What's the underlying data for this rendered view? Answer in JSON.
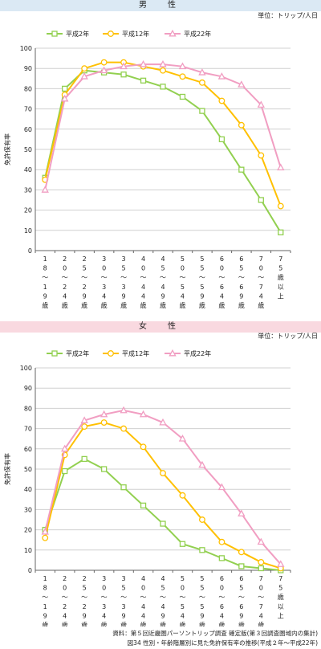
{
  "male": {
    "header": "男　性",
    "unit": "単位：トリップ/人日"
  },
  "female": {
    "header": "女　性",
    "unit": "単位：トリップ/人日"
  },
  "footer": {
    "source": "資料：第５回近畿圏パーソントリップ調査 確定版(第３回調査圏域内の集計)",
    "caption": "図34 性別・年齢階層別に見た免許保有率の推移(平成２年〜平成22年)"
  },
  "chart_data": [
    {
      "type": "line",
      "title": "男　性",
      "ylabel": "免許保有率",
      "xlabel": "",
      "ylim": [
        0,
        100
      ],
      "yticks": [
        0,
        10,
        20,
        30,
        40,
        50,
        60,
        70,
        80,
        90,
        100
      ],
      "grid": true,
      "legend": "top",
      "categories": [
        "18〜19歳",
        "20〜24歳",
        "25〜29歳",
        "30〜34歳",
        "35〜39歳",
        "40〜44歳",
        "45〜49歳",
        "50〜54歳",
        "55〜59歳",
        "60〜64歳",
        "65〜69歳",
        "70〜74歳",
        "75歳以上"
      ],
      "series": [
        {
          "name": "平成2年",
          "color": "#92d050",
          "marker": "square",
          "values": [
            36,
            80,
            89,
            88,
            87,
            84,
            81,
            76,
            69,
            55,
            40,
            25,
            9
          ]
        },
        {
          "name": "平成12年",
          "color": "#ffc000",
          "marker": "circle",
          "values": [
            35,
            77,
            90,
            93,
            93,
            91,
            89,
            86,
            83,
            74,
            62,
            47,
            22
          ]
        },
        {
          "name": "平成22年",
          "color": "#f19ec2",
          "marker": "triangle",
          "values": [
            30,
            75,
            86,
            89,
            91,
            92,
            92,
            91,
            88,
            86,
            82,
            72,
            41
          ]
        }
      ]
    },
    {
      "type": "line",
      "title": "女　性",
      "ylabel": "免許保有率",
      "xlabel": "",
      "ylim": [
        0,
        100
      ],
      "yticks": [
        0,
        10,
        20,
        30,
        40,
        50,
        60,
        70,
        80,
        90,
        100
      ],
      "grid": true,
      "legend": "top",
      "categories": [
        "18〜19歳",
        "20〜24歳",
        "25〜29歳",
        "30〜34歳",
        "35〜39歳",
        "40〜44歳",
        "45〜49歳",
        "50〜54歳",
        "55〜59歳",
        "60〜64歳",
        "65〜69歳",
        "70〜74歳",
        "75歳以上"
      ],
      "series": [
        {
          "name": "平成2年",
          "color": "#92d050",
          "marker": "square",
          "values": [
            20,
            49,
            55,
            50,
            41,
            32,
            23,
            13,
            10,
            6,
            2,
            1,
            0
          ]
        },
        {
          "name": "平成12年",
          "color": "#ffc000",
          "marker": "circle",
          "values": [
            16,
            57,
            71,
            73,
            70,
            61,
            48,
            37,
            25,
            14,
            9,
            4,
            1
          ]
        },
        {
          "name": "平成22年",
          "color": "#f19ec2",
          "marker": "triangle",
          "values": [
            19,
            60,
            74,
            77,
            79,
            77,
            73,
            65,
            52,
            41,
            28,
            14,
            3
          ]
        }
      ]
    }
  ]
}
